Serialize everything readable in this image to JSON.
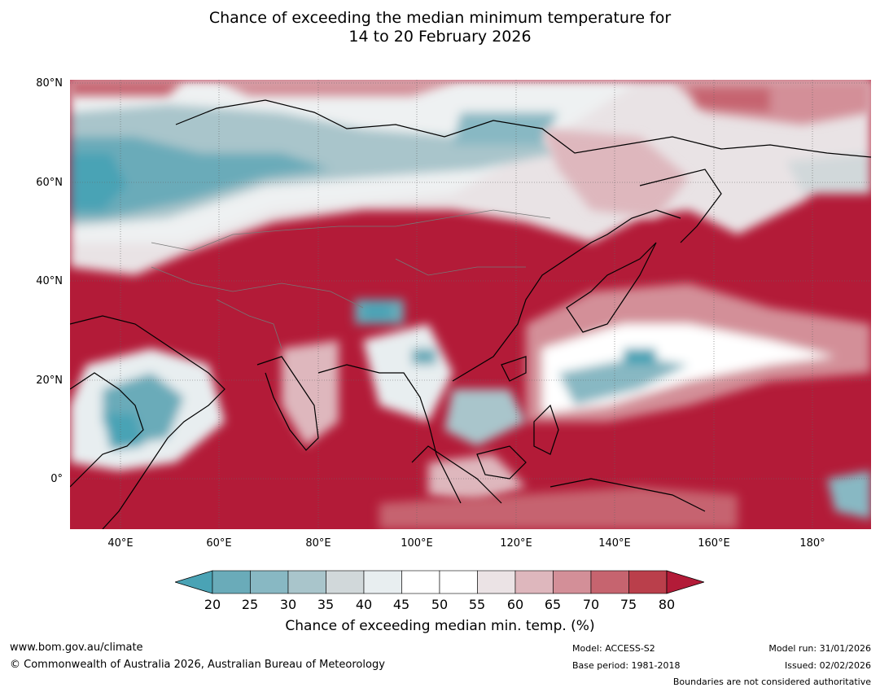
{
  "title": {
    "line1": "Chance of exceeding the median minimum temperature for",
    "line2": "14 to 20 February 2026"
  },
  "map": {
    "y_axis_labels": [
      "80°N",
      "60°N",
      "40°N",
      "20°N",
      "0°"
    ],
    "x_axis_labels": [
      "40°E",
      "60°E",
      "80°E",
      "100°E",
      "120°E",
      "140°E",
      "160°E",
      "180°"
    ],
    "colors": {
      "dominant_high": "#b31b38",
      "low": "#4aa3b5",
      "neutral": "#ffffff"
    }
  },
  "colorbar": {
    "ticks": [
      "20",
      "25",
      "30",
      "35",
      "40",
      "45",
      "50",
      "55",
      "60",
      "65",
      "70",
      "75",
      "80"
    ],
    "colors": [
      "#4aa3b5",
      "#6aabb9",
      "#88b8c3",
      "#a9c5cb",
      "#d1d8da",
      "#e8eef0",
      "#ffffff",
      "#ffffff",
      "#ebe3e5",
      "#deb7bd",
      "#d38f98",
      "#c6646f",
      "#ba3f4b",
      "#b31b38"
    ],
    "label": "Chance of exceeding median min. temp. (%)"
  },
  "footer": {
    "website": "www.bom.gov.au/climate",
    "copyright": "© Commonwealth of Australia 2026, Australian Bureau of Meteorology",
    "model": "Model: ACCESS-S2",
    "base_period": "Base period: 1981-2018",
    "model_run": "Model run: 31/01/2026",
    "issued": "Issued: 02/02/2026",
    "boundaries_note": "Boundaries are not considered authoritative"
  }
}
